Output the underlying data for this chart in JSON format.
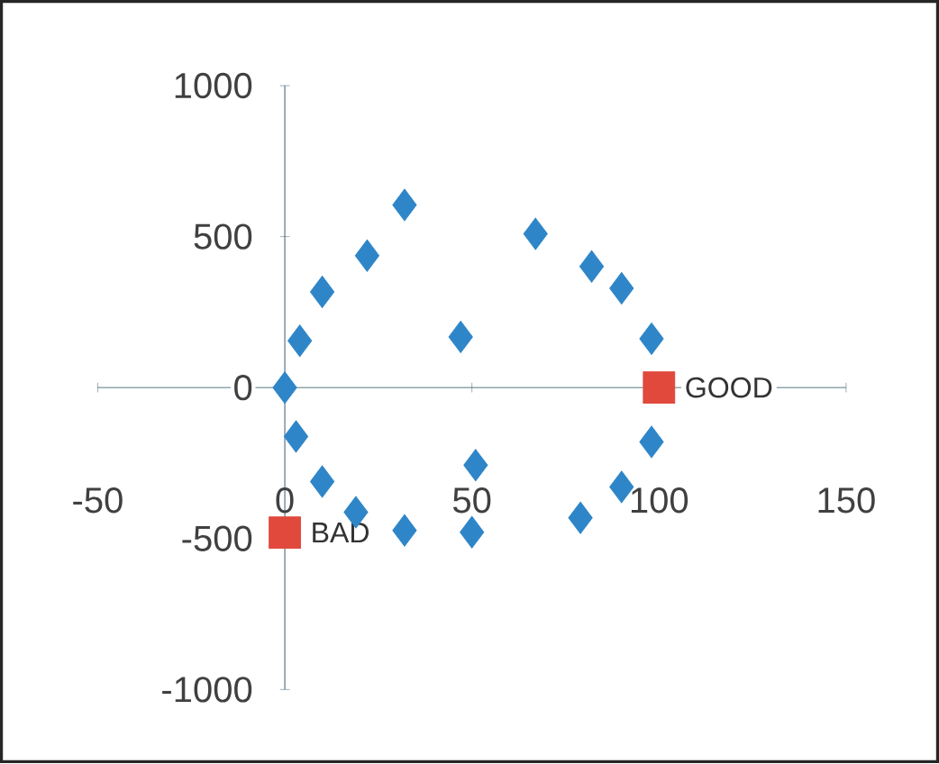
{
  "chart_data": {
    "type": "scatter",
    "xlim": [
      -50,
      150
    ],
    "ylim": [
      -1000,
      1000
    ],
    "xticks": [
      -50,
      0,
      50,
      100,
      150
    ],
    "yticks": [
      -1000,
      -500,
      0,
      500,
      1000
    ],
    "series": [
      {
        "color": "#2e86c8",
        "marker": "diamond",
        "x": [
          0,
          4,
          10,
          22,
          32,
          47,
          67,
          82,
          90,
          98,
          98,
          90,
          79,
          51,
          50,
          32,
          19,
          10,
          3
        ],
        "values": [
          0,
          155,
          317,
          437,
          605,
          168,
          509,
          401,
          329,
          162,
          -180,
          -329,
          -431,
          -257,
          -479,
          -473,
          -413,
          -311,
          -162
        ]
      },
      {
        "color": "#e0493c",
        "marker": "square",
        "x": [
          100,
          0
        ],
        "values": [
          0,
          -480
        ]
      }
    ],
    "ref_lines": [
      {
        "axis": "y",
        "value": 0,
        "color": "#8fa5ad"
      }
    ],
    "annotations": [
      {
        "text": "GOOD",
        "x": 100,
        "y": 0
      },
      {
        "text": "BAD",
        "x": 0,
        "y": -480
      }
    ]
  }
}
